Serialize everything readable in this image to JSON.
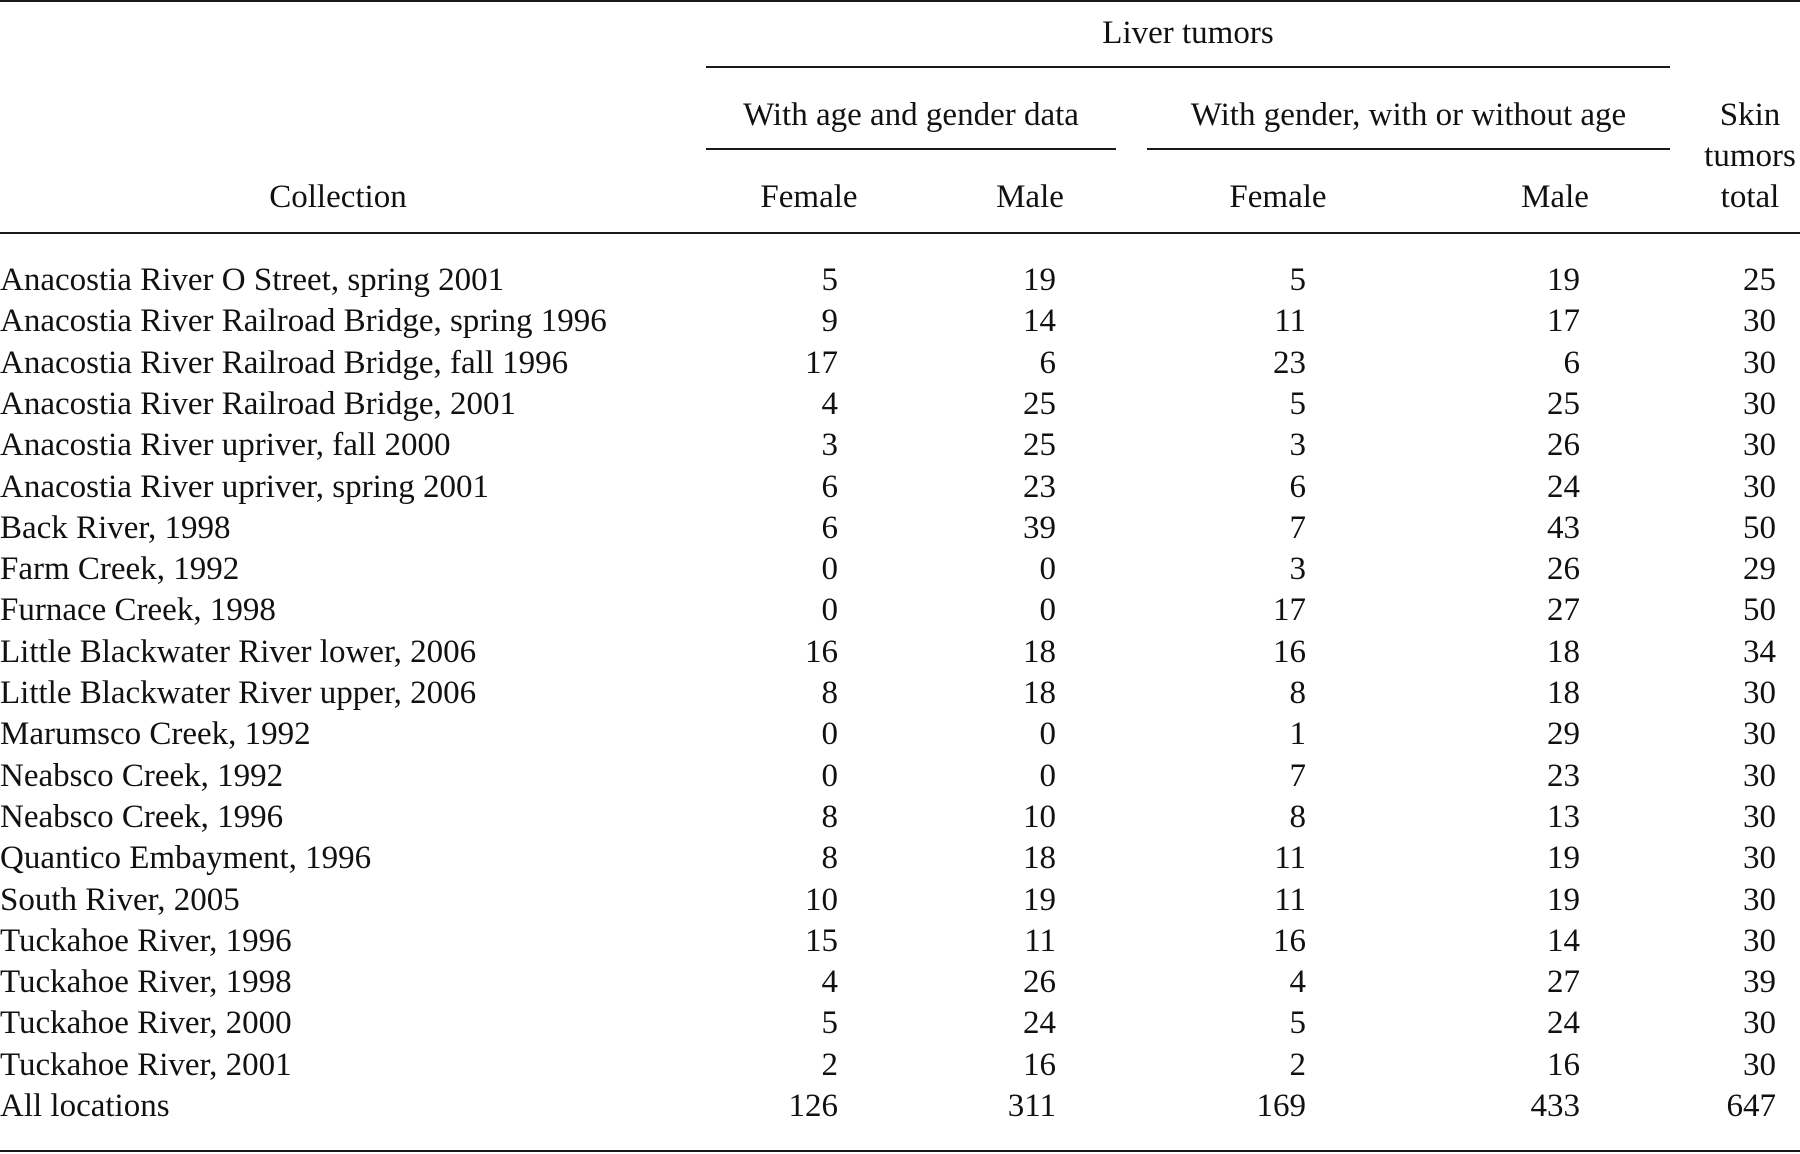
{
  "table": {
    "header": {
      "collection": "Collection",
      "liver_tumors": "Liver tumors",
      "group_age_gender": "With age and gender data",
      "group_gender": "With gender, with or without age",
      "skin_line1": "Skin",
      "skin_line2": "tumors",
      "skin_line3": "total",
      "female_1": "Female",
      "male_1": "Male",
      "female_2": "Female",
      "male_2": "Male"
    },
    "rows": [
      {
        "collection": "Anacostia River O Street, spring 2001",
        "f1": "5",
        "m1": "19",
        "f2": "5",
        "m2": "19",
        "skin": "25"
      },
      {
        "collection": "Anacostia River Railroad Bridge, spring 1996",
        "f1": "9",
        "m1": "14",
        "f2": "11",
        "m2": "17",
        "skin": "30"
      },
      {
        "collection": "Anacostia River Railroad Bridge, fall 1996",
        "f1": "17",
        "m1": "6",
        "f2": "23",
        "m2": "6",
        "skin": "30"
      },
      {
        "collection": "Anacostia River Railroad Bridge, 2001",
        "f1": "4",
        "m1": "25",
        "f2": "5",
        "m2": "25",
        "skin": "30"
      },
      {
        "collection": "Anacostia River upriver, fall 2000",
        "f1": "3",
        "m1": "25",
        "f2": "3",
        "m2": "26",
        "skin": "30"
      },
      {
        "collection": "Anacostia River upriver, spring 2001",
        "f1": "6",
        "m1": "23",
        "f2": "6",
        "m2": "24",
        "skin": "30"
      },
      {
        "collection": "Back River, 1998",
        "f1": "6",
        "m1": "39",
        "f2": "7",
        "m2": "43",
        "skin": "50"
      },
      {
        "collection": "Farm Creek, 1992",
        "f1": "0",
        "m1": "0",
        "f2": "3",
        "m2": "26",
        "skin": "29"
      },
      {
        "collection": "Furnace Creek, 1998",
        "f1": "0",
        "m1": "0",
        "f2": "17",
        "m2": "27",
        "skin": "50"
      },
      {
        "collection": "Little Blackwater River lower, 2006",
        "f1": "16",
        "m1": "18",
        "f2": "16",
        "m2": "18",
        "skin": "34"
      },
      {
        "collection": "Little Blackwater River upper, 2006",
        "f1": "8",
        "m1": "18",
        "f2": "8",
        "m2": "18",
        "skin": "30"
      },
      {
        "collection": "Marumsco Creek, 1992",
        "f1": "0",
        "m1": "0",
        "f2": "1",
        "m2": "29",
        "skin": "30"
      },
      {
        "collection": "Neabsco Creek, 1992",
        "f1": "0",
        "m1": "0",
        "f2": "7",
        "m2": "23",
        "skin": "30"
      },
      {
        "collection": "Neabsco Creek, 1996",
        "f1": "8",
        "m1": "10",
        "f2": "8",
        "m2": "13",
        "skin": "30"
      },
      {
        "collection": "Quantico Embayment, 1996",
        "f1": "8",
        "m1": "18",
        "f2": "11",
        "m2": "19",
        "skin": "30"
      },
      {
        "collection": "South River, 2005",
        "f1": "10",
        "m1": "19",
        "f2": "11",
        "m2": "19",
        "skin": "30"
      },
      {
        "collection": "Tuckahoe River, 1996",
        "f1": "15",
        "m1": "11",
        "f2": "16",
        "m2": "14",
        "skin": "30"
      },
      {
        "collection": "Tuckahoe River, 1998",
        "f1": "4",
        "m1": "26",
        "f2": "4",
        "m2": "27",
        "skin": "39"
      },
      {
        "collection": "Tuckahoe River, 2000",
        "f1": "5",
        "m1": "24",
        "f2": "5",
        "m2": "24",
        "skin": "30"
      },
      {
        "collection": "Tuckahoe River, 2001",
        "f1": "2",
        "m1": "16",
        "f2": "2",
        "m2": "16",
        "skin": "30"
      },
      {
        "collection": "All locations",
        "f1": "126",
        "m1": "311",
        "f2": "169",
        "m2": "433",
        "skin": "647"
      }
    ]
  }
}
